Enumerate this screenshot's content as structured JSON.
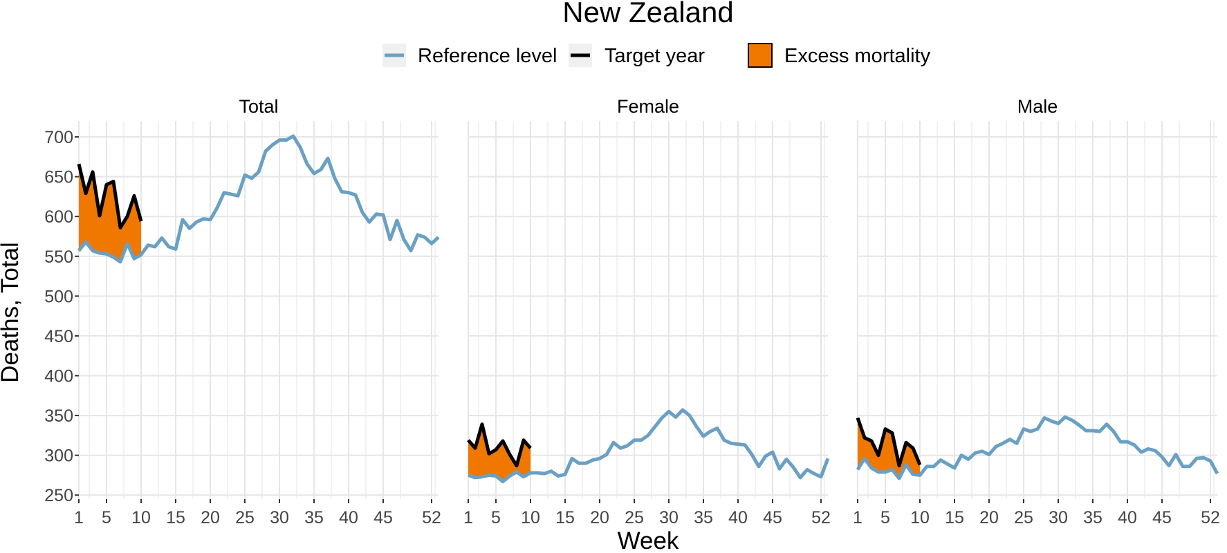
{
  "colors": {
    "reference": "#6aa0c4",
    "target": "#000000",
    "excess": "#f07800",
    "grid": "#e6e6e6",
    "legend_key_bg": "#f0f0f0"
  },
  "chart_data": {
    "type": "line",
    "title": "New Zealand",
    "xlabel": "Week",
    "ylabel": "Deaths, Total",
    "ylim": [
      245,
      720
    ],
    "xlim": [
      1,
      53
    ],
    "x_ticks": [
      1,
      5,
      10,
      15,
      20,
      25,
      30,
      35,
      40,
      45,
      52
    ],
    "y_ticks": [
      250,
      300,
      350,
      400,
      450,
      500,
      550,
      600,
      650,
      700
    ],
    "grid": true,
    "legend": {
      "position": "top",
      "items": [
        {
          "label": "Reference level",
          "kind": "line",
          "color": "#6aa0c4"
        },
        {
          "label": "Target year",
          "kind": "line",
          "color": "#000000"
        },
        {
          "label": "Excess mortality",
          "kind": "fill",
          "color": "#f07800"
        }
      ]
    },
    "facets": [
      {
        "label": "Total",
        "reference": [
          557,
          568,
          557,
          554,
          553,
          549,
          543,
          566,
          547,
          552,
          564,
          562,
          573,
          562,
          559,
          596,
          585,
          593,
          597,
          596,
          611,
          630,
          628,
          626,
          652,
          648,
          656,
          682,
          690,
          696,
          696,
          701,
          687,
          666,
          654,
          659,
          673,
          648,
          631,
          630,
          627,
          605,
          593,
          603,
          602,
          571,
          595,
          571,
          557,
          577,
          574,
          566,
          574
        ],
        "target": [
          666,
          629,
          656,
          601,
          640,
          644,
          586,
          600,
          626,
          594
        ]
      },
      {
        "label": "Female",
        "reference": [
          275,
          272,
          273,
          275,
          274,
          267,
          274,
          279,
          273,
          278,
          278,
          277,
          280,
          274,
          276,
          296,
          290,
          290,
          294,
          296,
          301,
          316,
          309,
          312,
          319,
          319,
          325,
          336,
          347,
          355,
          348,
          357,
          350,
          336,
          324,
          330,
          334,
          319,
          315,
          314,
          313,
          301,
          286,
          299,
          304,
          283,
          295,
          285,
          272,
          282,
          277,
          273,
          296
        ],
        "target": [
          319,
          309,
          339,
          302,
          307,
          318,
          301,
          287,
          319,
          309
        ]
      },
      {
        "label": "Male",
        "reference": [
          282,
          296,
          284,
          279,
          279,
          282,
          271,
          288,
          276,
          275,
          286,
          286,
          294,
          289,
          284,
          300,
          295,
          303,
          305,
          301,
          311,
          315,
          320,
          315,
          333,
          330,
          333,
          347,
          343,
          340,
          348,
          344,
          338,
          331,
          331,
          330,
          339,
          330,
          317,
          317,
          313,
          304,
          308,
          306,
          298,
          287,
          301,
          286,
          286,
          296,
          297,
          293,
          277
        ],
        "target": [
          347,
          322,
          318,
          300,
          333,
          328,
          287,
          316,
          309,
          288
        ]
      }
    ]
  }
}
